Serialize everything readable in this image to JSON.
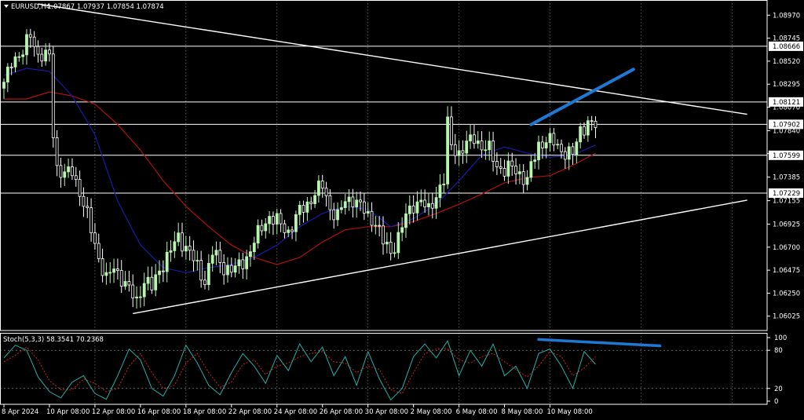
{
  "header": {
    "symbol": "EURUSD,H4",
    "ohlc": "1.07867 1.07937 1.07854 1.07874",
    "menu_icon": "triangle-down-icon"
  },
  "colors": {
    "background": "#000000",
    "candle_up": "#b8f5b0",
    "candle_down": "#ffffff",
    "ma_fast": "#1a1aa8",
    "ma_slow": "#b01010",
    "trendline": "#ffffff",
    "hline": "#ffffff",
    "annotation": "#1e78d4",
    "stoch_main": "#20b2aa",
    "stoch_signal": "#d02020",
    "grid": "#c8c8c8",
    "axis_text": "#ffffff"
  },
  "chart_data": [
    {
      "type": "candlestick",
      "symbol": "EURUSD",
      "timeframe": "H4",
      "ylim": [
        1.059,
        1.0908
      ],
      "price_ticks": [
        1.0897,
        1.08745,
        1.0852,
        1.08295,
        1.0807,
        1.0784,
        1.07615,
        1.07385,
        1.07155,
        1.06925,
        1.067,
        1.06475,
        1.0625,
        1.06025
      ],
      "price_labels": [
        "1.08970",
        "1.08745",
        "1.08520",
        "1.08295",
        "1.08070",
        "1.07840",
        "1.07615",
        "1.07385",
        "1.07155",
        "1.06925",
        "1.06700",
        "1.06475",
        "1.06250",
        "1.06025"
      ],
      "x_labels": [
        "8 Apr 2024",
        "10 Apr 08:00",
        "12 Apr 08:00",
        "16 Apr 08:00",
        "18 Apr 08:00",
        "22 Apr 08:00",
        "24 Apr 08:00",
        "26 Apr 08:00",
        "30 Apr 08:00",
        "2 May 08:00",
        "6 May 08:00",
        "8 May 08:00",
        "10 May 08:00"
      ],
      "x_label_bars": [
        0,
        12,
        24,
        36,
        48,
        60,
        72,
        84,
        96,
        108,
        120,
        132,
        144
      ],
      "grid_bars": [
        24,
        48,
        72,
        96,
        120,
        144,
        168,
        192
      ],
      "horizontal_levels": [
        {
          "value": 1.08666,
          "label": "1.08666"
        },
        {
          "value": 1.08121,
          "label": "1.08121"
        },
        {
          "value": 1.07902,
          "label": "1.07902"
        },
        {
          "value": 1.07599,
          "label": "1.07599"
        },
        {
          "value": 1.07229,
          "label": "1.07229"
        }
      ],
      "trendlines": [
        {
          "from": [
            9,
            1.0908
          ],
          "to": [
            196,
            1.08
          ]
        },
        {
          "from": [
            34,
            1.0605
          ],
          "to": [
            196,
            1.0716
          ]
        }
      ],
      "anchors": [
        {
          "bar": 0,
          "close": 1.0828
        },
        {
          "bar": 2,
          "close": 1.0854
        },
        {
          "bar": 5,
          "close": 1.0859
        },
        {
          "bar": 7,
          "close": 1.088
        },
        {
          "bar": 9,
          "close": 1.0858
        },
        {
          "bar": 11,
          "close": 1.0855
        },
        {
          "bar": 12,
          "close": 1.0858
        },
        {
          "bar": 13,
          "close": 1.0782
        },
        {
          "bar": 14,
          "close": 1.0748
        },
        {
          "bar": 16,
          "close": 1.074
        },
        {
          "bar": 18,
          "close": 1.0745
        },
        {
          "bar": 20,
          "close": 1.0724
        },
        {
          "bar": 22,
          "close": 1.07
        },
        {
          "bar": 25,
          "close": 1.066
        },
        {
          "bar": 27,
          "close": 1.0638
        },
        {
          "bar": 29,
          "close": 1.065
        },
        {
          "bar": 31,
          "close": 1.064
        },
        {
          "bar": 33,
          "close": 1.0628
        },
        {
          "bar": 35,
          "close": 1.0617
        },
        {
          "bar": 37,
          "close": 1.0638
        },
        {
          "bar": 39,
          "close": 1.063
        },
        {
          "bar": 41,
          "close": 1.0648
        },
        {
          "bar": 43,
          "close": 1.066
        },
        {
          "bar": 46,
          "close": 1.068
        },
        {
          "bar": 49,
          "close": 1.0665
        },
        {
          "bar": 51,
          "close": 1.065
        },
        {
          "bar": 53,
          "close": 1.0637
        },
        {
          "bar": 55,
          "close": 1.0665
        },
        {
          "bar": 58,
          "close": 1.065
        },
        {
          "bar": 61,
          "close": 1.0648
        },
        {
          "bar": 64,
          "close": 1.066
        },
        {
          "bar": 66,
          "close": 1.0675
        },
        {
          "bar": 68,
          "close": 1.069
        },
        {
          "bar": 70,
          "close": 1.07
        },
        {
          "bar": 72,
          "close": 1.0695
        },
        {
          "bar": 75,
          "close": 1.0685
        },
        {
          "bar": 78,
          "close": 1.0705
        },
        {
          "bar": 80,
          "close": 1.0712
        },
        {
          "bar": 82,
          "close": 1.0723
        },
        {
          "bar": 84,
          "close": 1.073
        },
        {
          "bar": 86,
          "close": 1.0708
        },
        {
          "bar": 88,
          "close": 1.07
        },
        {
          "bar": 90,
          "close": 1.0715
        },
        {
          "bar": 92,
          "close": 1.0718
        },
        {
          "bar": 94,
          "close": 1.071
        },
        {
          "bar": 96,
          "close": 1.07
        },
        {
          "bar": 98,
          "close": 1.0695
        },
        {
          "bar": 100,
          "close": 1.0675
        },
        {
          "bar": 102,
          "close": 1.0665
        },
        {
          "bar": 104,
          "close": 1.068
        },
        {
          "bar": 106,
          "close": 1.07
        },
        {
          "bar": 108,
          "close": 1.0712
        },
        {
          "bar": 110,
          "close": 1.0715
        },
        {
          "bar": 112,
          "close": 1.0705
        },
        {
          "bar": 114,
          "close": 1.0722
        },
        {
          "bar": 116,
          "close": 1.0735
        },
        {
          "bar": 117,
          "close": 1.079
        },
        {
          "bar": 118,
          "close": 1.077
        },
        {
          "bar": 120,
          "close": 1.0762
        },
        {
          "bar": 122,
          "close": 1.077
        },
        {
          "bar": 124,
          "close": 1.0778
        },
        {
          "bar": 126,
          "close": 1.0768
        },
        {
          "bar": 128,
          "close": 1.0765
        },
        {
          "bar": 130,
          "close": 1.075
        },
        {
          "bar": 132,
          "close": 1.0745
        },
        {
          "bar": 134,
          "close": 1.0748
        },
        {
          "bar": 136,
          "close": 1.0742
        },
        {
          "bar": 138,
          "close": 1.0735
        },
        {
          "bar": 139,
          "close": 1.0748
        },
        {
          "bar": 141,
          "close": 1.077
        },
        {
          "bar": 143,
          "close": 1.0775
        },
        {
          "bar": 145,
          "close": 1.0772
        },
        {
          "bar": 147,
          "close": 1.0765
        },
        {
          "bar": 149,
          "close": 1.0762
        },
        {
          "bar": 150,
          "close": 1.076
        },
        {
          "bar": 152,
          "close": 1.0785
        },
        {
          "bar": 154,
          "close": 1.0792
        },
        {
          "bar": 156,
          "close": 1.0787
        }
      ],
      "ma_fast_points": [
        [
          0,
          1.0838
        ],
        [
          6,
          1.0845
        ],
        [
          12,
          1.0842
        ],
        [
          18,
          1.0818
        ],
        [
          24,
          1.078
        ],
        [
          30,
          1.0715
        ],
        [
          36,
          1.0672
        ],
        [
          42,
          1.065
        ],
        [
          48,
          1.0645
        ],
        [
          54,
          1.065
        ],
        [
          60,
          1.0653
        ],
        [
          66,
          1.066
        ],
        [
          72,
          1.0672
        ],
        [
          78,
          1.069
        ],
        [
          84,
          1.0703
        ],
        [
          90,
          1.071
        ],
        [
          96,
          1.0707
        ],
        [
          102,
          1.069
        ],
        [
          108,
          1.0698
        ],
        [
          114,
          1.0712
        ],
        [
          120,
          1.0735
        ],
        [
          126,
          1.076
        ],
        [
          132,
          1.0768
        ],
        [
          138,
          1.0762
        ],
        [
          144,
          1.0758
        ],
        [
          150,
          1.076
        ],
        [
          156,
          1.077
        ]
      ],
      "ma_slow_points": [
        [
          0,
          1.0815
        ],
        [
          6,
          1.0815
        ],
        [
          12,
          1.0822
        ],
        [
          18,
          1.0818
        ],
        [
          24,
          1.081
        ],
        [
          30,
          1.079
        ],
        [
          36,
          1.0765
        ],
        [
          42,
          1.0735
        ],
        [
          48,
          1.071
        ],
        [
          54,
          1.069
        ],
        [
          60,
          1.0672
        ],
        [
          66,
          1.066
        ],
        [
          72,
          1.0653
        ],
        [
          78,
          1.066
        ],
        [
          84,
          1.0675
        ],
        [
          90,
          1.0687
        ],
        [
          96,
          1.069
        ],
        [
          102,
          1.069
        ],
        [
          108,
          1.0695
        ],
        [
          114,
          1.0703
        ],
        [
          120,
          1.0712
        ],
        [
          126,
          1.0722
        ],
        [
          132,
          1.0733
        ],
        [
          138,
          1.0738
        ],
        [
          144,
          1.074
        ],
        [
          150,
          1.075
        ],
        [
          156,
          1.0762
        ]
      ],
      "annotations": [
        {
          "from": [
            139,
            1.079
          ],
          "to": [
            166,
            1.0844
          ]
        }
      ]
    },
    {
      "type": "line",
      "title": "Stoch(5,3,3) 58.3541 70.2368",
      "ylim": [
        0,
        100
      ],
      "y_ticks": [
        100,
        80,
        20,
        0
      ],
      "levels": [
        80,
        20
      ],
      "main_points": [
        [
          0,
          68
        ],
        [
          3,
          88
        ],
        [
          6,
          80
        ],
        [
          9,
          38
        ],
        [
          12,
          15
        ],
        [
          15,
          5
        ],
        [
          18,
          30
        ],
        [
          21,
          40
        ],
        [
          24,
          12
        ],
        [
          27,
          3
        ],
        [
          30,
          40
        ],
        [
          33,
          82
        ],
        [
          36,
          65
        ],
        [
          39,
          20
        ],
        [
          42,
          8
        ],
        [
          45,
          40
        ],
        [
          48,
          88
        ],
        [
          51,
          60
        ],
        [
          54,
          25
        ],
        [
          57,
          10
        ],
        [
          60,
          45
        ],
        [
          63,
          75
        ],
        [
          66,
          55
        ],
        [
          69,
          28
        ],
        [
          72,
          72
        ],
        [
          75,
          48
        ],
        [
          78,
          90
        ],
        [
          81,
          62
        ],
        [
          84,
          85
        ],
        [
          87,
          40
        ],
        [
          90,
          70
        ],
        [
          93,
          25
        ],
        [
          96,
          78
        ],
        [
          99,
          35
        ],
        [
          102,
          2
        ],
        [
          105,
          20
        ],
        [
          108,
          70
        ],
        [
          111,
          90
        ],
        [
          114,
          68
        ],
        [
          117,
          95
        ],
        [
          120,
          40
        ],
        [
          123,
          80
        ],
        [
          126,
          55
        ],
        [
          129,
          90
        ],
        [
          132,
          40
        ],
        [
          135,
          55
        ],
        [
          138,
          20
        ],
        [
          141,
          75
        ],
        [
          144,
          82
        ],
        [
          147,
          55
        ],
        [
          150,
          20
        ],
        [
          153,
          78
        ],
        [
          156,
          58
        ]
      ],
      "signal_points": [
        [
          0,
          62
        ],
        [
          3,
          72
        ],
        [
          6,
          85
        ],
        [
          9,
          65
        ],
        [
          12,
          32
        ],
        [
          15,
          18
        ],
        [
          18,
          18
        ],
        [
          21,
          35
        ],
        [
          24,
          28
        ],
        [
          27,
          15
        ],
        [
          30,
          20
        ],
        [
          33,
          55
        ],
        [
          36,
          75
        ],
        [
          39,
          45
        ],
        [
          42,
          20
        ],
        [
          45,
          25
        ],
        [
          48,
          60
        ],
        [
          51,
          75
        ],
        [
          54,
          45
        ],
        [
          57,
          22
        ],
        [
          60,
          30
        ],
        [
          63,
          58
        ],
        [
          66,
          65
        ],
        [
          69,
          42
        ],
        [
          72,
          55
        ],
        [
          75,
          60
        ],
        [
          78,
          70
        ],
        [
          81,
          75
        ],
        [
          84,
          78
        ],
        [
          87,
          62
        ],
        [
          90,
          60
        ],
        [
          93,
          45
        ],
        [
          96,
          55
        ],
        [
          99,
          50
        ],
        [
          102,
          18
        ],
        [
          105,
          12
        ],
        [
          108,
          45
        ],
        [
          111,
          75
        ],
        [
          114,
          82
        ],
        [
          117,
          82
        ],
        [
          120,
          65
        ],
        [
          123,
          60
        ],
        [
          126,
          70
        ],
        [
          129,
          75
        ],
        [
          132,
          62
        ],
        [
          135,
          50
        ],
        [
          138,
          38
        ],
        [
          141,
          55
        ],
        [
          144,
          78
        ],
        [
          147,
          70
        ],
        [
          150,
          40
        ],
        [
          153,
          52
        ],
        [
          156,
          70
        ]
      ],
      "annotations": [
        {
          "from": [
            141,
            97
          ],
          "to": [
            173,
            87
          ]
        }
      ]
    }
  ]
}
